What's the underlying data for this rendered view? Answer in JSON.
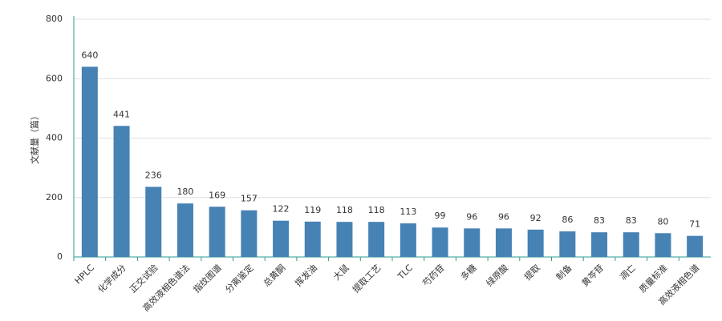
{
  "chart_data": {
    "type": "bar",
    "y_label": "文献量（篇）",
    "categories": [
      "HPLC",
      "化学成分",
      "正交试验",
      "高效液相色谱法",
      "指纹图谱",
      "分离鉴定",
      "总黄酮",
      "挥发油",
      "大鼠",
      "提取工艺",
      "TLC",
      "芍药苷",
      "多糖",
      "绿原酸",
      "提取",
      "制备",
      "黄芩苷",
      "凋亡",
      "质量标准",
      "高效液相色谱"
    ],
    "values": [
      640,
      441,
      236,
      180,
      169,
      157,
      122,
      119,
      118,
      118,
      113,
      99,
      96,
      96,
      92,
      86,
      83,
      83,
      80,
      71
    ],
    "color": "#4682b4",
    "ylim": [
      0,
      800
    ],
    "yticks": [
      0,
      200,
      400,
      600,
      800
    ],
    "grid": true
  }
}
